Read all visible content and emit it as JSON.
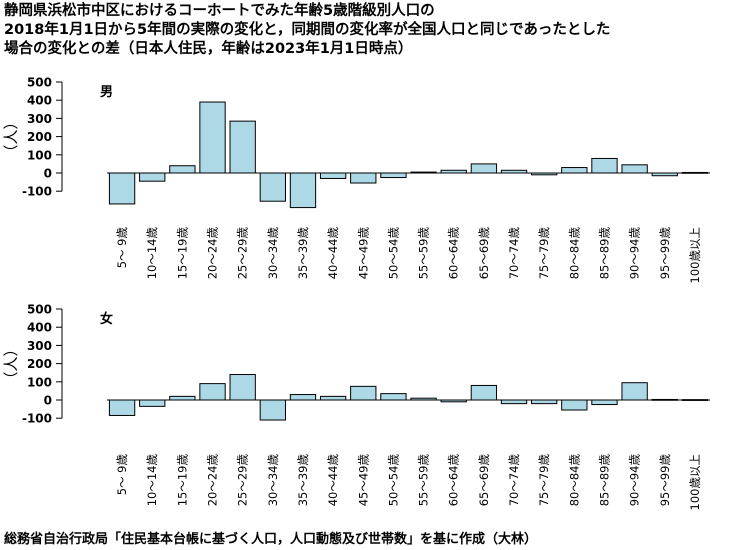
{
  "title_lines": [
    "静岡県浜松市中区におけるコーホートでみた年齢5歳階級別人口の",
    "2018年1月1日から5年間の実際の変化と，同期間の変化率が全国人口と同じであったとした",
    "場合の変化との差（日本人住民，年齢は2023年1月1日時点）"
  ],
  "source": "総務省自治行政局「住民基本台帳に基づく人口，人口動態及び世帯数」を基に作成（大林）",
  "colors": {
    "bar_fill": "#add8e6",
    "bar_stroke": "#000000"
  },
  "chart_data": [
    {
      "type": "bar",
      "panel_label": "男",
      "ylabel": "（人）",
      "ylim": [
        -200,
        500
      ],
      "yticks": [
        -100,
        0,
        100,
        200,
        300,
        400,
        500
      ],
      "categories": [
        "5～ 9歳",
        "10～14歳",
        "15～19歳",
        "20～24歳",
        "25～29歳",
        "30～34歳",
        "35～39歳",
        "40～44歳",
        "45～49歳",
        "50～54歳",
        "55～59歳",
        "60～64歳",
        "65～69歳",
        "70～74歳",
        "75～79歳",
        "80～84歳",
        "85～89歳",
        "90～94歳",
        "95～99歳",
        "100歳以上"
      ],
      "values": [
        -170,
        -45,
        40,
        390,
        285,
        -155,
        -190,
        -30,
        -55,
        -25,
        5,
        15,
        50,
        15,
        -10,
        30,
        80,
        45,
        -15,
        3
      ]
    },
    {
      "type": "bar",
      "panel_label": "女",
      "ylabel": "（人）",
      "ylim": [
        -200,
        500
      ],
      "yticks": [
        -100,
        0,
        100,
        200,
        300,
        400,
        500
      ],
      "categories": [
        "5～ 9歳",
        "10～14歳",
        "15～19歳",
        "20～24歳",
        "25～29歳",
        "30～34歳",
        "35～39歳",
        "40～44歳",
        "45～49歳",
        "50～54歳",
        "55～59歳",
        "60～64歳",
        "65～69歳",
        "70～74歳",
        "75～79歳",
        "80～84歳",
        "85～89歳",
        "90～94歳",
        "95～99歳",
        "100歳以上"
      ],
      "values": [
        -85,
        -35,
        20,
        90,
        140,
        -110,
        30,
        20,
        75,
        35,
        10,
        -10,
        80,
        -20,
        -20,
        -55,
        -25,
        95,
        3,
        2
      ]
    }
  ]
}
